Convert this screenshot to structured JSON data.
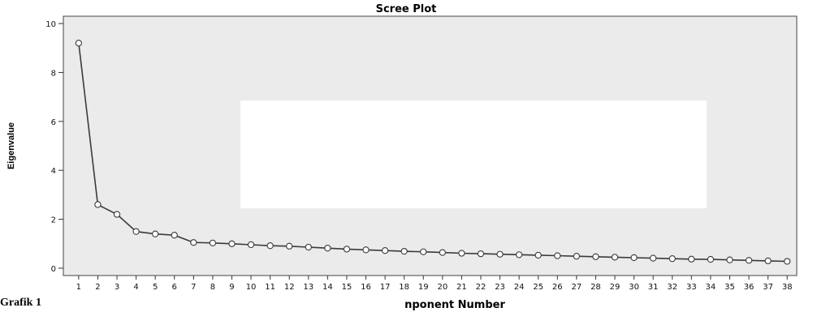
{
  "chart_data": {
    "type": "line",
    "title": "Scree Plot",
    "xlabel": "nponent Number",
    "ylabel": "Eigenvalue",
    "x": [
      1,
      2,
      3,
      4,
      5,
      6,
      7,
      8,
      9,
      10,
      11,
      12,
      13,
      14,
      15,
      16,
      17,
      18,
      19,
      20,
      21,
      22,
      23,
      24,
      25,
      26,
      27,
      28,
      29,
      30,
      31,
      32,
      33,
      34,
      35,
      36,
      37,
      38
    ],
    "series": [
      {
        "values": [
          9.2,
          2.6,
          2.2,
          1.5,
          1.4,
          1.35,
          1.05,
          1.03,
          1.0,
          0.96,
          0.92,
          0.9,
          0.86,
          0.82,
          0.78,
          0.75,
          0.72,
          0.69,
          0.67,
          0.64,
          0.61,
          0.59,
          0.57,
          0.55,
          0.53,
          0.51,
          0.49,
          0.47,
          0.45,
          0.43,
          0.41,
          0.39,
          0.37,
          0.36,
          0.34,
          0.32,
          0.3,
          0.28
        ]
      }
    ],
    "yticks": [
      0,
      2,
      4,
      6,
      8,
      10
    ],
    "ylim": [
      -0.3,
      10.3
    ],
    "xlim": [
      0.2,
      38.5
    ],
    "grid": false,
    "colors": {
      "plot_background": "#ebebeb",
      "line": "#3a3a3a",
      "marker_fill": "#ffffff",
      "obscured_box": "#ffffff"
    }
  },
  "caption": "Grafik 1"
}
